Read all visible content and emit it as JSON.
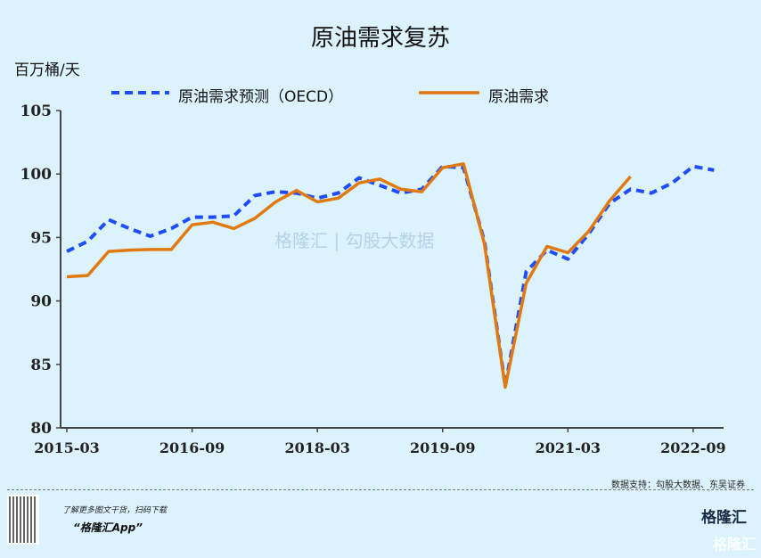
{
  "chart_data": {
    "type": "line",
    "title": "原油需求复苏",
    "ylabel": "百万桶/天",
    "xlabel": "",
    "ylim": [
      80,
      105
    ],
    "yticks": [
      80,
      85,
      90,
      95,
      100,
      105
    ],
    "x_start": "2015-03",
    "x_step": "quarter",
    "xtick_labels": [
      {
        "q": 0,
        "label": "2015-03"
      },
      {
        "q": 6,
        "label": "2016-09"
      },
      {
        "q": 12,
        "label": "2018-03"
      },
      {
        "q": 18,
        "label": "2019-09"
      },
      {
        "q": 24,
        "label": "2021-03"
      },
      {
        "q": 30,
        "label": "2022-09"
      }
    ],
    "legend_position": "top",
    "series": [
      {
        "name": "原油需求预测（OECD）",
        "style": "dashed",
        "color": "#1f4cff",
        "values": [
          93.9,
          94.7,
          96.4,
          95.7,
          95.1,
          95.7,
          96.6,
          96.6,
          96.7,
          98.3,
          98.6,
          98.5,
          98.1,
          98.5,
          99.7,
          99.1,
          98.5,
          98.8,
          100.6,
          100.5,
          94.7,
          83.3,
          92.3,
          94.0,
          93.3,
          95.3,
          97.7,
          98.8,
          98.5,
          99.3,
          100.6,
          100.3
        ]
      },
      {
        "name": "原油需求",
        "style": "solid",
        "color": "#e07a10",
        "values": [
          91.9,
          92.0,
          93.9,
          94.0,
          94.05,
          94.05,
          96.0,
          96.2,
          95.7,
          96.5,
          97.8,
          98.7,
          97.8,
          98.1,
          99.3,
          99.6,
          98.8,
          98.6,
          100.5,
          100.8,
          94.5,
          83.2,
          91.4,
          94.3,
          93.8,
          95.5,
          97.9,
          99.8
        ]
      }
    ]
  },
  "footer": {
    "source": "数据支持：勾股大数据、东吴证券",
    "promo_line1": "了解更多图文干货，扫码下载",
    "promo_line2": "“格隆汇App”",
    "logo": "格隆汇",
    "logo_corner": "格隆汇"
  },
  "watermark": "格隆汇 | 勾股大数据"
}
